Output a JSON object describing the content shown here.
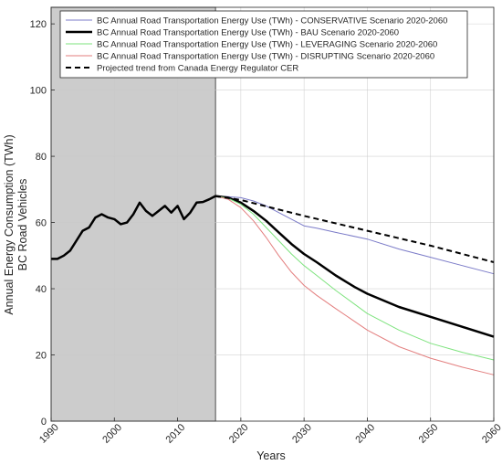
{
  "chart_data": {
    "type": "line",
    "title": "",
    "xlabel": "Years",
    "ylabel": [
      "Annual Energy Consumption (TWh)",
      "BC Road Vehicles"
    ],
    "xlim": [
      1990,
      2060
    ],
    "ylim": [
      0,
      125
    ],
    "xticks": [
      1990,
      2000,
      2010,
      2020,
      2030,
      2040,
      2050,
      2060
    ],
    "yticks": [
      0,
      20,
      40,
      60,
      80,
      100,
      120
    ],
    "grid": true,
    "legend_position": "top",
    "shaded_region": {
      "x_from": 1990,
      "x_to": 2016,
      "color": "#cccccc"
    },
    "series": [
      {
        "name": "BC Annual Road Transportation Energy Use (TWh) - CONSERVATIVE Scenario 2020-2060",
        "color": "#7b7bc8",
        "width": 1,
        "dash": "",
        "x": [
          1990,
          1991,
          1992,
          1993,
          1994,
          1995,
          1996,
          1997,
          1998,
          1999,
          2000,
          2001,
          2002,
          2003,
          2004,
          2005,
          2006,
          2007,
          2008,
          2009,
          2010,
          2011,
          2012,
          2013,
          2014,
          2015,
          2016,
          2018,
          2020,
          2022,
          2024,
          2026,
          2028,
          2030,
          2032,
          2035,
          2040,
          2045,
          2050,
          2055,
          2060
        ],
        "y": [
          49,
          49,
          50,
          51.5,
          54.5,
          57.5,
          58.5,
          61.5,
          62.5,
          61.5,
          61,
          59.5,
          60,
          62.5,
          66,
          63.5,
          62,
          63.5,
          65,
          63,
          65,
          61,
          63,
          66,
          66.2,
          67,
          68,
          67.8,
          67.5,
          66.5,
          65,
          63,
          61,
          59,
          58.3,
          57,
          55,
          52,
          49.5,
          47,
          44.5
        ]
      },
      {
        "name": "BC Annual Road Transportation Energy Use (TWh) - BAU Scenario 2020-2060",
        "color": "#000000",
        "width": 2.5,
        "dash": "",
        "x": [
          1990,
          1991,
          1992,
          1993,
          1994,
          1995,
          1996,
          1997,
          1998,
          1999,
          2000,
          2001,
          2002,
          2003,
          2004,
          2005,
          2006,
          2007,
          2008,
          2009,
          2010,
          2011,
          2012,
          2013,
          2014,
          2015,
          2016,
          2018,
          2020,
          2022,
          2024,
          2026,
          2028,
          2030,
          2032,
          2035,
          2038,
          2040,
          2045,
          2050,
          2055,
          2060
        ],
        "y": [
          49,
          49,
          50,
          51.5,
          54.5,
          57.5,
          58.5,
          61.5,
          62.5,
          61.5,
          61,
          59.5,
          60,
          62.5,
          66,
          63.5,
          62,
          63.5,
          65,
          63,
          65,
          61,
          63,
          66,
          66.2,
          67,
          68,
          67.5,
          66,
          63.5,
          60.5,
          57,
          53.5,
          50.5,
          48,
          44,
          40.5,
          38.5,
          34.5,
          31.5,
          28.5,
          25.5
        ]
      },
      {
        "name": "BC Annual Road Transportation Energy Use (TWh) - LEVERAGING Scenario 2020-2060",
        "color": "#7ee37e",
        "width": 1,
        "dash": "",
        "x": [
          2016,
          2018,
          2020,
          2022,
          2024,
          2026,
          2028,
          2030,
          2032,
          2035,
          2040,
          2045,
          2050,
          2055,
          2060
        ],
        "y": [
          68,
          67.3,
          65.5,
          62.5,
          58.5,
          54.5,
          50.5,
          47,
          44,
          39.5,
          32.5,
          27.5,
          23.5,
          20.8,
          18.5
        ]
      },
      {
        "name": "BC Annual Road Transportation Energy Use (TWh) - DISRUPTING Scenario 2020-2060",
        "color": "#e37e7e",
        "width": 1,
        "dash": "",
        "x": [
          2016,
          2018,
          2020,
          2022,
          2024,
          2026,
          2028,
          2030,
          2032,
          2035,
          2040,
          2045,
          2050,
          2055,
          2060
        ],
        "y": [
          68,
          67,
          64.5,
          60.5,
          55.5,
          50,
          45,
          41,
          38,
          34,
          27.5,
          22.5,
          19,
          16.3,
          14
        ]
      },
      {
        "name": "Projected trend from Canada Energy Regulator CER",
        "color": "#000000",
        "width": 2,
        "dash": "6,4",
        "x": [
          2016,
          2020,
          2030,
          2040,
          2050,
          2060
        ],
        "y": [
          68,
          66.8,
          62,
          57.5,
          53,
          48
        ]
      }
    ]
  }
}
